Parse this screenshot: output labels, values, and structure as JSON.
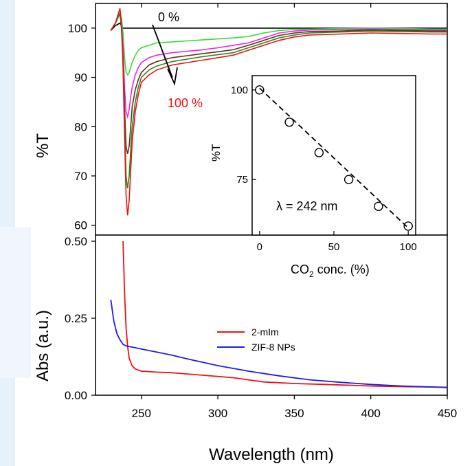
{
  "figure": {
    "xlabel": "Wavelength (nm)",
    "x_ticks": [
      250,
      300,
      350,
      400,
      450
    ]
  },
  "chart_data": [
    {
      "type": "line",
      "panel": "top",
      "title": "",
      "xlabel": "Wavelength (nm)",
      "ylabel": "%T",
      "xlim": [
        220,
        450
      ],
      "ylim": [
        58,
        105
      ],
      "y_ticks": [
        60,
        70,
        80,
        90,
        100
      ],
      "annotations": {
        "start": "0 %",
        "end": "100 %"
      },
      "x": [
        230,
        233,
        236,
        237,
        238,
        239,
        240,
        241,
        242,
        243,
        244,
        246,
        248,
        250,
        255,
        260,
        270,
        280,
        290,
        300,
        310,
        320,
        330,
        340,
        350,
        360,
        380,
        400,
        420,
        440,
        450
      ],
      "series": [
        {
          "color": "#000000",
          "values": [
            99.5,
            100.5,
            101,
            100.5,
            100,
            100,
            100,
            100,
            100,
            100,
            100,
            100,
            100,
            100,
            100,
            100,
            100,
            100,
            100,
            100,
            100,
            100,
            100,
            100,
            100,
            100,
            100,
            100,
            100,
            100,
            100
          ]
        },
        {
          "color": "#33dd33",
          "values": [
            99.5,
            101,
            103,
            102,
            99,
            94,
            91,
            90.5,
            91,
            92,
            93,
            94.5,
            95.5,
            96,
            96.5,
            97,
            97.2,
            97.4,
            97.6,
            97.8,
            98,
            98.3,
            99,
            99.5,
            99.7,
            99.8,
            99.9,
            100,
            99.9,
            99.8,
            99.8
          ]
        },
        {
          "color": "#ee22ee",
          "values": [
            99.5,
            101,
            103,
            101,
            96,
            88,
            83,
            82,
            83.5,
            86,
            88,
            90.5,
            92,
            93,
            94,
            94.5,
            95,
            95.3,
            95.6,
            96,
            96.5,
            97,
            98,
            99,
            99.4,
            99.6,
            99.7,
            99.8,
            99.7,
            99.6,
            99.6
          ]
        },
        {
          "color": "#6b2a1a",
          "values": [
            99.5,
            101,
            103,
            100,
            94,
            84,
            76,
            74.5,
            76,
            80,
            84,
            87.5,
            89.5,
            91,
            92.5,
            93.2,
            94,
            94.4,
            94.8,
            95.2,
            95.6,
            96.5,
            97.5,
            98.5,
            99,
            99.3,
            99.4,
            99.6,
            99.5,
            99.4,
            99.4
          ]
        },
        {
          "color": "#1f8a1f",
          "values": [
            99.5,
            101,
            103,
            100,
            93,
            81,
            70,
            67.5,
            70,
            75,
            80,
            85,
            88,
            90,
            91.5,
            92.3,
            93.2,
            93.7,
            94.2,
            94.6,
            95,
            96,
            97,
            98,
            98.6,
            99,
            99.2,
            99.4,
            99.3,
            99.2,
            99.2
          ]
        },
        {
          "color": "#ee1111",
          "values": [
            99.5,
            101,
            104,
            101,
            92,
            78,
            66,
            62,
            65,
            71,
            77,
            83,
            86.5,
            89,
            90.5,
            91.5,
            92.5,
            93,
            93.5,
            94,
            94.5,
            95.5,
            96.5,
            97.5,
            98.2,
            98.6,
            98.8,
            99,
            98.9,
            98.8,
            98.8
          ]
        }
      ]
    },
    {
      "type": "scatter",
      "panel": "inset",
      "title": "",
      "xlabel": "CO2 conc. (%)",
      "ylabel": "%T",
      "xlim": [
        -5,
        105
      ],
      "ylim": [
        59.5,
        104
      ],
      "x_ticks": [
        0,
        50,
        100
      ],
      "y_ticks": [
        75,
        100
      ],
      "annotation": "λ  = 242 nm",
      "x": [
        0,
        20,
        40,
        60,
        80,
        100
      ],
      "values": [
        100,
        91,
        82.5,
        75,
        67.5,
        62
      ],
      "fit": {
        "x": [
          0,
          100
        ],
        "values": [
          100.5,
          61.5
        ]
      }
    },
    {
      "type": "line",
      "panel": "bottom",
      "title": "",
      "xlabel": "Wavelength (nm)",
      "ylabel": "Abs (a.u.)",
      "xlim": [
        220,
        450
      ],
      "ylim": [
        0,
        0.52
      ],
      "y_ticks": [
        "0.00",
        "0.25",
        "0.50"
      ],
      "legend": "center-right",
      "series": [
        {
          "name": "2-mIm",
          "color": "#ee1111",
          "x": [
            238,
            239,
            240,
            241,
            242,
            244,
            246,
            250,
            260,
            270,
            290,
            310,
            320,
            330,
            350,
            370,
            400,
            420,
            450
          ],
          "values": [
            0.5,
            0.33,
            0.22,
            0.16,
            0.12,
            0.095,
            0.085,
            0.078,
            0.075,
            0.073,
            0.065,
            0.057,
            0.05,
            0.043,
            0.038,
            0.035,
            0.03,
            0.028,
            0.026
          ]
        },
        {
          "name": "ZIF-8 NPs",
          "color": "#1c1cee",
          "x": [
            230,
            232,
            234,
            236,
            238,
            240,
            245,
            250,
            260,
            270,
            280,
            300,
            320,
            340,
            360,
            380,
            400,
            420,
            450
          ],
          "values": [
            0.31,
            0.24,
            0.2,
            0.18,
            0.165,
            0.16,
            0.155,
            0.15,
            0.14,
            0.13,
            0.118,
            0.096,
            0.078,
            0.063,
            0.05,
            0.042,
            0.035,
            0.03,
            0.025
          ]
        }
      ]
    }
  ]
}
